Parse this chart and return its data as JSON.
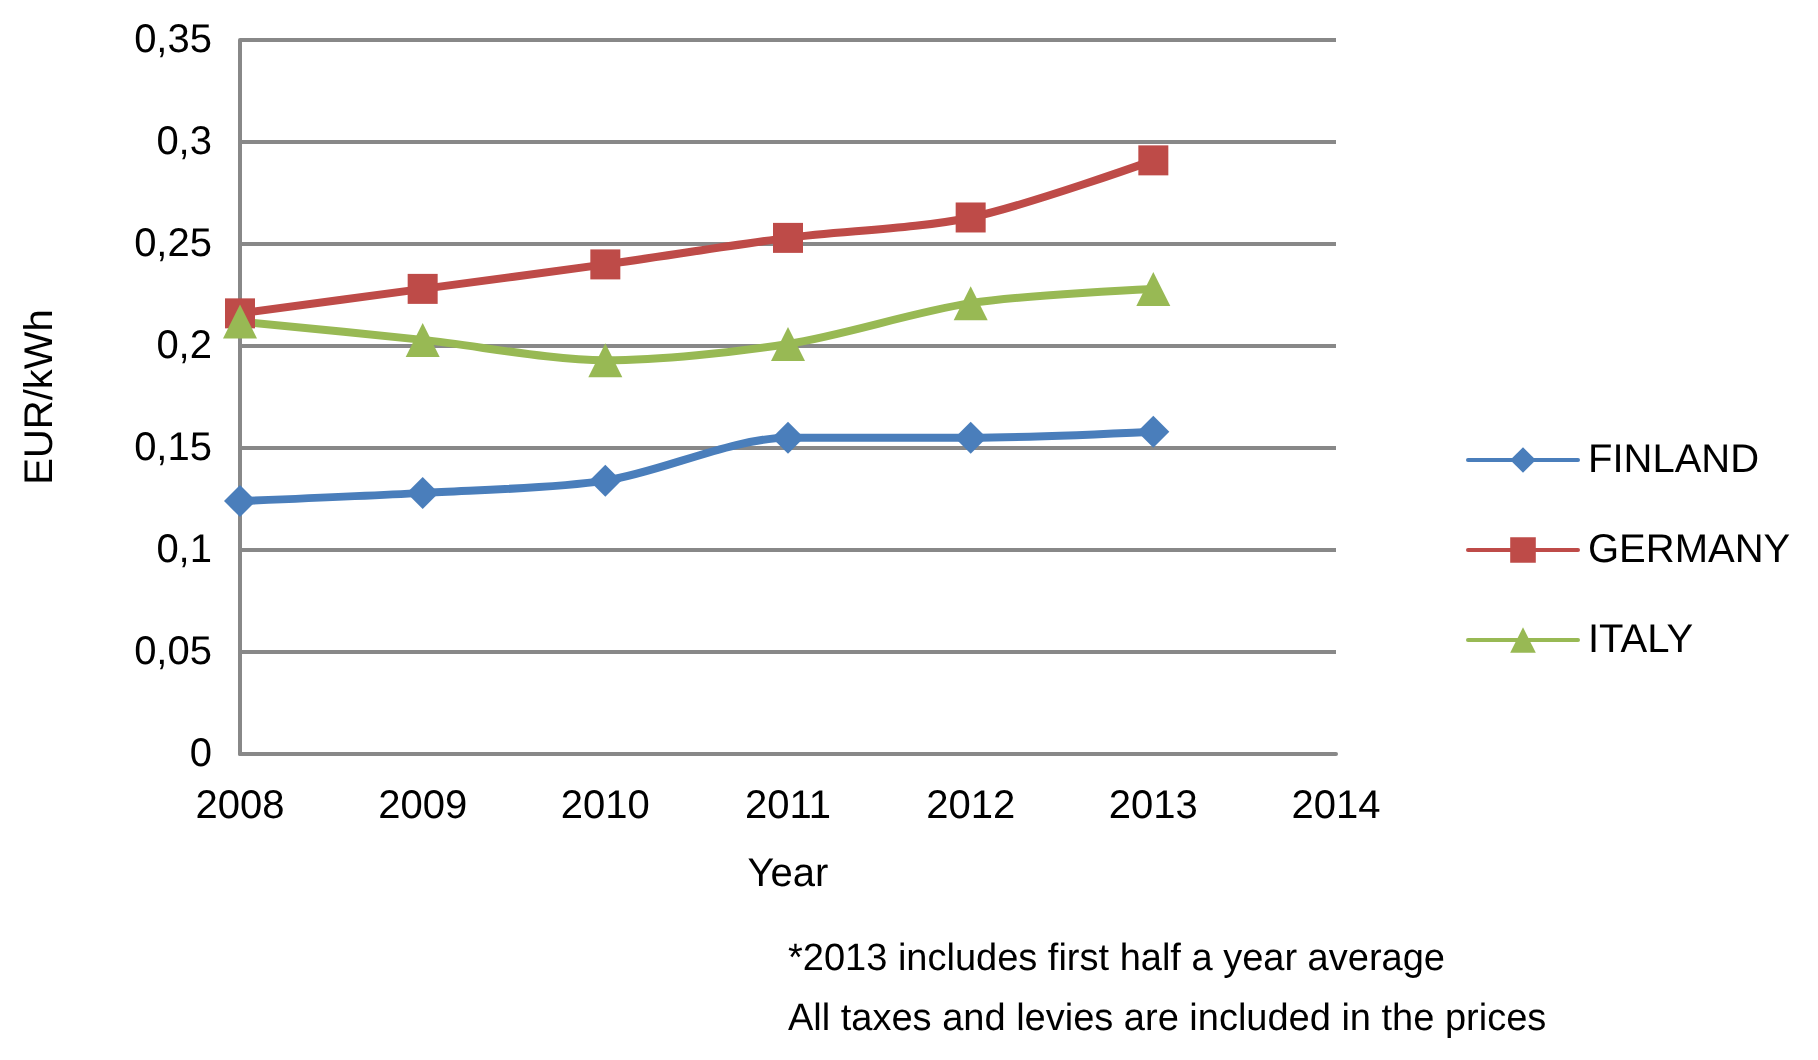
{
  "chart_data": {
    "type": "line",
    "xlabel": "Year",
    "ylabel": "EUR/kWh",
    "annotations": [
      "*2013 includes first half a year average",
      "All taxes and levies are included in the prices"
    ],
    "x": [
      2008,
      2009,
      2010,
      2011,
      2012,
      2013
    ],
    "series": [
      {
        "name": "FINLAND",
        "color": "#4a7ebb",
        "marker": "diamond",
        "values": [
          0.124,
          0.128,
          0.134,
          0.155,
          0.155,
          0.158
        ]
      },
      {
        "name": "GERMANY",
        "color": "#be4b48",
        "marker": "square",
        "values": [
          0.216,
          0.228,
          0.24,
          0.253,
          0.263,
          0.291
        ]
      },
      {
        "name": "ITALY",
        "color": "#98b954",
        "marker": "triangle",
        "values": [
          0.212,
          0.203,
          0.193,
          0.201,
          0.221,
          0.228
        ]
      }
    ],
    "xlim": [
      2008,
      2014
    ],
    "xticks": [
      2008,
      2009,
      2010,
      2011,
      2012,
      2013,
      2014
    ],
    "ylim": [
      0,
      0.35
    ],
    "yticks": [
      0,
      {
        "value": 0.05,
        "label": "0,05"
      },
      {
        "value": 0.1,
        "label": "0,1"
      },
      {
        "value": 0.15,
        "label": "0,15"
      },
      {
        "value": 0.2,
        "label": "0,2"
      },
      {
        "value": 0.25,
        "label": "0,25"
      },
      {
        "value": 0.3,
        "label": "0,3"
      },
      {
        "value": 0.35,
        "label": "0,35"
      }
    ],
    "grid": "y",
    "legend": "right",
    "line_style": "solid"
  }
}
